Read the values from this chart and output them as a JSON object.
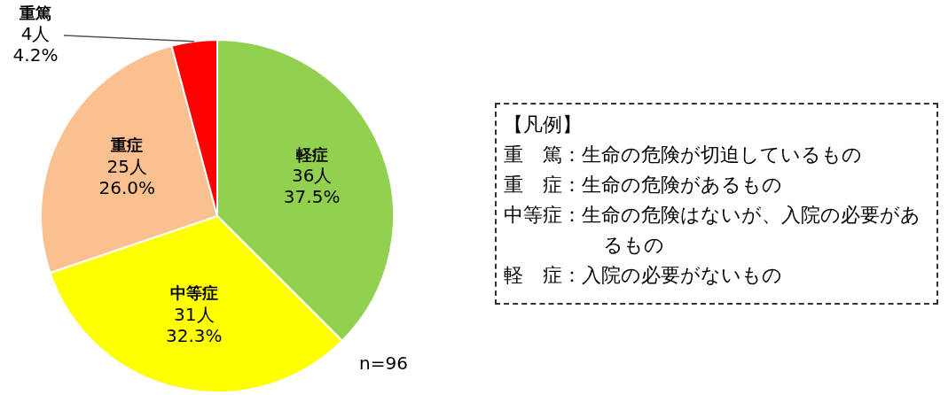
{
  "chart_data": {
    "type": "pie",
    "categories": [
      "軽症",
      "中等症",
      "重症",
      "重篤"
    ],
    "values": [
      36,
      31,
      25,
      4
    ],
    "colors": [
      "#92d050",
      "#ffff00",
      "#fac090",
      "#ff0000"
    ],
    "value_labels": [
      "36人\n37.5%",
      "31人\n32.3%",
      "25人\n26.0%",
      "4人\n4.2%"
    ],
    "annotations": [
      "【凡例】",
      "重　篤：生命の危険が切迫しているもの",
      "重　症：生命の危険があるもの",
      "中等症：生命の危険はないが、入院の必要があるもの",
      "軽　症：入院の必要がないもの",
      "n=96"
    ]
  }
}
